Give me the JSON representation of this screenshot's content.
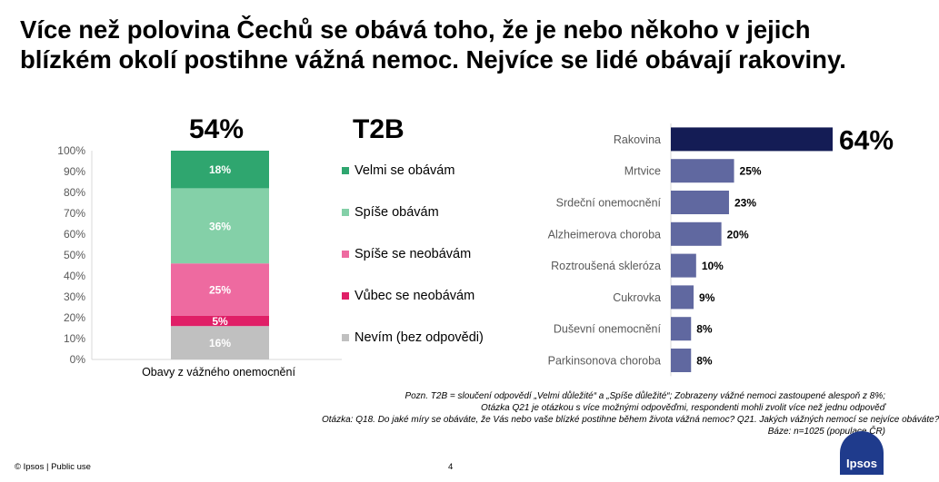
{
  "title": "Více než polovina Čechů se obává toho, že je nebo někoho v jejich blízkém okolí postihne vážná nemoc. Nejvíce se lidé obávají rakoviny.",
  "t2b_value": "54%",
  "t2b_label": "T2B",
  "colors": {
    "velmi": "#2fa66f",
    "spise": "#84d0a8",
    "spise_ne": "#ee6aa0",
    "vubec_ne": "#e01f67",
    "nevim": "#c0c0c0",
    "highlight_bar": "#141c55",
    "bars": "#6068a0"
  },
  "chart_data": [
    {
      "type": "bar",
      "stacked": true,
      "categories": [
        "Obavy z vážného onemocnění"
      ],
      "yticks": [
        "0%",
        "10%",
        "20%",
        "30%",
        "40%",
        "50%",
        "60%",
        "70%",
        "80%",
        "90%",
        "100%"
      ],
      "ylim": [
        0,
        100
      ],
      "series": [
        {
          "name": "Nevím (bez odpovědi)",
          "values": [
            16
          ],
          "label": "16%"
        },
        {
          "name": "Vůbec se neobávám",
          "values": [
            5
          ],
          "label": "5%"
        },
        {
          "name": "Spíše se neobávám",
          "values": [
            25
          ],
          "label": "25%"
        },
        {
          "name": "Spíše obávám",
          "values": [
            36
          ],
          "label": "36%"
        },
        {
          "name": "Velmi se obávám",
          "values": [
            18
          ],
          "label": "18%"
        }
      ],
      "legend": [
        "Velmi se obávám",
        "Spíše obávám",
        "Spíše se neobávám",
        "Vůbec se neobávám",
        "Nevím (bez odpovědi)"
      ]
    },
    {
      "type": "bar",
      "orientation": "horizontal",
      "categories": [
        "Rakovina",
        "Mrtvice",
        "Srdeční onemocnění",
        "Alzheimerova choroba",
        "Roztroušená skleróza",
        "Cukrovka",
        "Duševní onemocnění",
        "Parkinsonova choroba"
      ],
      "values": [
        64,
        25,
        23,
        20,
        10,
        9,
        8,
        8
      ],
      "labels": [
        "64%",
        "25%",
        "23%",
        "20%",
        "10%",
        "9%",
        "8%",
        "8%"
      ],
      "xlim": [
        0,
        70
      ]
    }
  ],
  "notes": [
    "Pozn. T2B = sloučení odpovědí „Velmi důležité“ a „Spíše důležité“; Zobrazeny vážné nemoci zastoupené alespoň z 8%;",
    "Otázka Q21 je otázkou s více možnými odpověďmi, respondenti mohli zvolit více než jednu odpověď",
    "Otázka: Q18. Do jaké míry se obáváte, že Vás nebo vaše blízké postihne během života vážná nemoc? Q21. Jakých vážných nemocí se nejvíce obáváte?",
    "Báze: n=1025 (populace ČR)"
  ],
  "footer": {
    "left": "© Ipsos | Public use",
    "page": "4",
    "logo": "Ipsos"
  }
}
